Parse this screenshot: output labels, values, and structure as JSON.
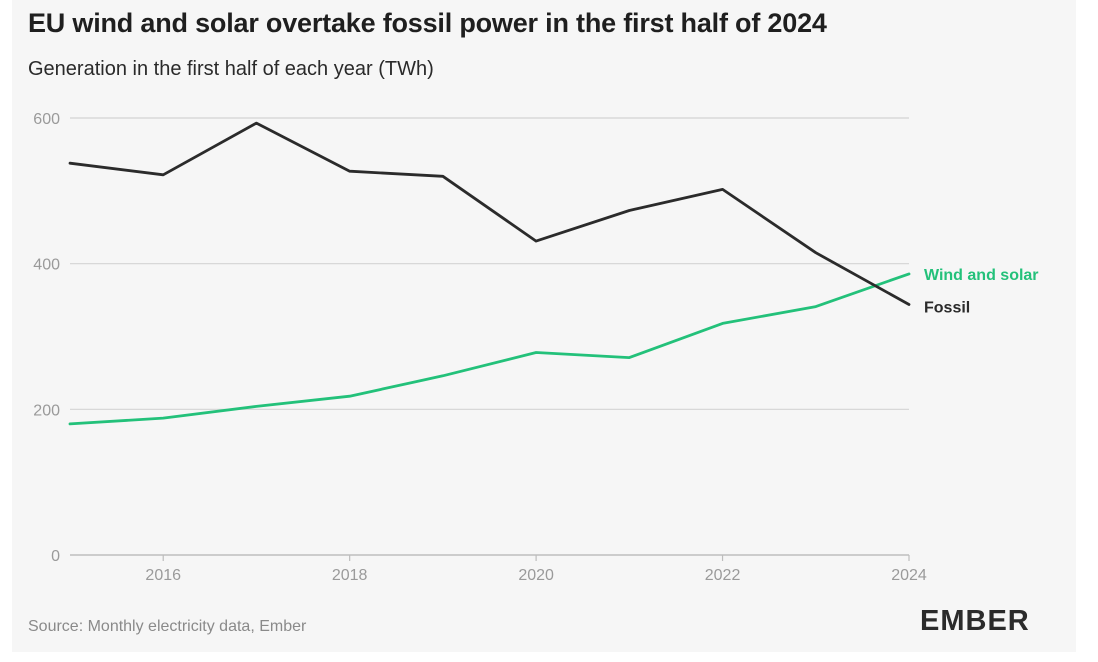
{
  "header": {
    "title": "EU wind and solar overtake fossil power in the first half of 2024",
    "subtitle": "Generation in the first half of each year (TWh)"
  },
  "footer": {
    "source": "Source: Monthly electricity data, Ember",
    "logo_text": "EMBER"
  },
  "colors": {
    "fossil": "#2b2b2b",
    "wind_and_solar": "#23c17a",
    "grid": "#d4d4d4",
    "logo": "#2b2b2b"
  },
  "chart_data": {
    "type": "line",
    "title": "EU wind and solar overtake fossil power in the first half of 2024",
    "subtitle": "Generation in the first half of each year (TWh)",
    "x": [
      2015,
      2016,
      2017,
      2018,
      2019,
      2020,
      2021,
      2022,
      2023,
      2024
    ],
    "x_ticks": [
      "2016",
      "2018",
      "2020",
      "2022",
      "2024"
    ],
    "y_ticks": [
      "0",
      "200",
      "400",
      "600"
    ],
    "xlim": [
      2015,
      2024
    ],
    "ylim": [
      0,
      600
    ],
    "grid": true,
    "legend": "inline labels at line ends",
    "series": [
      {
        "name": "Wind and solar",
        "values": [
          180,
          188,
          204,
          218,
          246,
          278,
          271,
          318,
          341,
          386
        ]
      },
      {
        "name": "Fossil",
        "values": [
          538,
          522,
          593,
          527,
          520,
          431,
          473,
          502,
          415,
          344
        ]
      }
    ]
  }
}
